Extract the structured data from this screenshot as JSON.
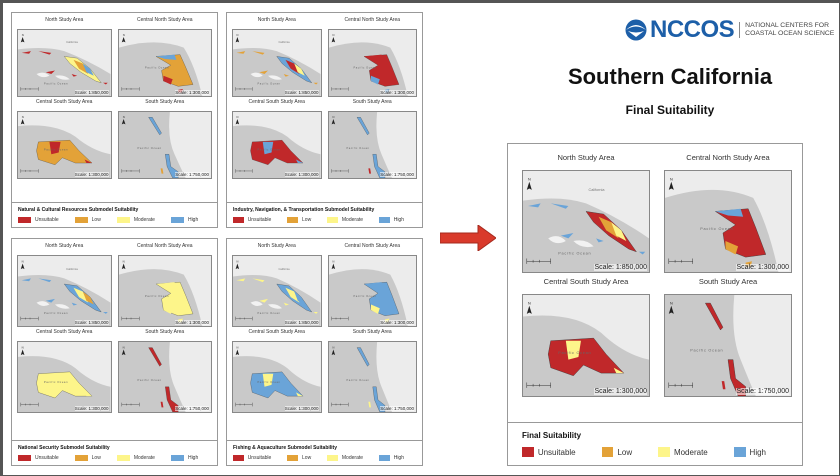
{
  "header": {
    "logo_text": "NCCOS",
    "logo_subtitle_1": "NATIONAL CENTERS FOR",
    "logo_subtitle_2": "COASTAL OCEAN SCIENCE",
    "title": "Southern California",
    "subtitle": "Final Suitability"
  },
  "colors": {
    "Unsuitable": "#c0282a",
    "Low": "#e3a238",
    "Moderate": "#fdf58a",
    "High": "#6aa4d8",
    "arrow": "#d93a2b"
  },
  "legend_items": [
    "Unsuitable",
    "Low",
    "Moderate",
    "High"
  ],
  "map_labels": {
    "ocean": "Pacific Ocean",
    "land": "California"
  },
  "panels": [
    {
      "id": "natural",
      "legend_title": "Natural & Cultural Resources Submodel Suitability",
      "maps": [
        {
          "title": "North Study Area",
          "scale": "Scale: 1:850,000",
          "fill": [
            "Moderate",
            "Low",
            "High",
            "Unsuitable"
          ]
        },
        {
          "title": "Central North Study Area",
          "scale": "Scale: 1:300,000",
          "fill": [
            "Low",
            "Unsuitable",
            "High"
          ]
        },
        {
          "title": "Central South Study Area",
          "scale": "Scale: 1:300,000",
          "fill": [
            "Low",
            "Unsuitable",
            "High"
          ]
        },
        {
          "title": "South Study Area",
          "scale": "Scale: 1:750,000",
          "fill": [
            "High",
            "Low",
            "Unsuitable"
          ]
        }
      ]
    },
    {
      "id": "industry",
      "legend_title": "Industry, Navigation, & Transportation Submodel Suitability",
      "maps": [
        {
          "title": "North Study Area",
          "scale": "Scale: 1:850,000",
          "fill": [
            "High",
            "Unsuitable",
            "Moderate",
            "Low"
          ]
        },
        {
          "title": "Central North Study Area",
          "scale": "Scale: 1:300,000",
          "fill": [
            "Unsuitable",
            "High"
          ]
        },
        {
          "title": "Central South Study Area",
          "scale": "Scale: 1:300,000",
          "fill": [
            "Unsuitable",
            "High"
          ]
        },
        {
          "title": "South Study Area",
          "scale": "Scale: 1:750,000",
          "fill": [
            "High",
            "Unsuitable",
            "Moderate"
          ]
        }
      ]
    },
    {
      "id": "security",
      "legend_title": "National Security Submodel Suitability",
      "maps": [
        {
          "title": "North Study Area",
          "scale": "Scale: 1:850,000",
          "fill": [
            "High",
            "Moderate",
            "Low"
          ]
        },
        {
          "title": "Central North Study Area",
          "scale": "Scale: 1:300,000",
          "fill": [
            "Moderate"
          ]
        },
        {
          "title": "Central South Study Area",
          "scale": "Scale: 1:300,000",
          "fill": [
            "Moderate"
          ]
        },
        {
          "title": "South Study Area",
          "scale": "Scale: 1:750,000",
          "fill": [
            "Unsuitable"
          ]
        }
      ]
    },
    {
      "id": "fishing",
      "legend_title": "Fishing & Aquaculture Submodel Suitability",
      "maps": [
        {
          "title": "North Study Area",
          "scale": "Scale: 1:850,000",
          "fill": [
            "High",
            "Moderate"
          ]
        },
        {
          "title": "Central North Study Area",
          "scale": "Scale: 1:300,000",
          "fill": [
            "High",
            "Moderate"
          ]
        },
        {
          "title": "Central South Study Area",
          "scale": "Scale: 1:300,000",
          "fill": [
            "High",
            "Moderate",
            "Unsuitable"
          ]
        },
        {
          "title": "South Study Area",
          "scale": "Scale: 1:750,000",
          "fill": [
            "High",
            "Moderate"
          ]
        }
      ]
    },
    {
      "id": "final",
      "legend_title": "Final Suitability",
      "maps": [
        {
          "title": "North Study Area",
          "scale": "Scale: 1:850,000",
          "fill": [
            "Unsuitable",
            "Low",
            "Moderate",
            "High"
          ]
        },
        {
          "title": "Central North Study Area",
          "scale": "Scale: 1:300,000",
          "fill": [
            "Unsuitable",
            "Low",
            "High",
            "Moderate"
          ]
        },
        {
          "title": "Central South Study Area",
          "scale": "Scale: 1:300,000",
          "fill": [
            "Unsuitable",
            "Moderate"
          ]
        },
        {
          "title": "South Study Area",
          "scale": "Scale: 1:750,000",
          "fill": [
            "Unsuitable"
          ]
        }
      ]
    }
  ]
}
